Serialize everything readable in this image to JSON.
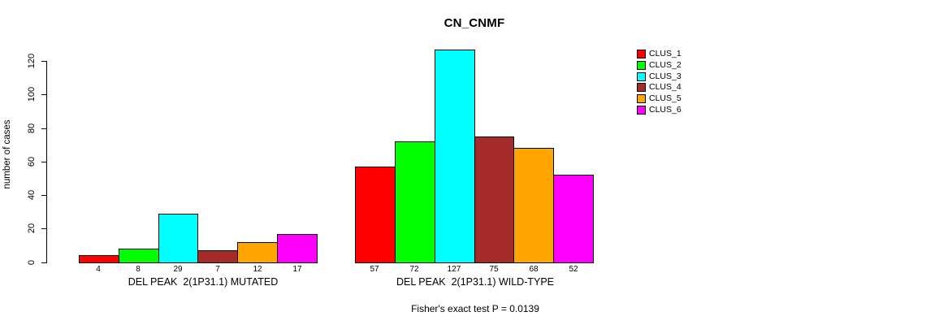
{
  "chart_data": {
    "type": "bar",
    "title": "CN_CNMF",
    "ylabel": "number of cases",
    "ylim": [
      0,
      130
    ],
    "yticks": [
      0,
      20,
      40,
      60,
      80,
      100,
      120
    ],
    "grid": false,
    "legend_position": "right",
    "categories": [
      "CLUS_1",
      "CLUS_2",
      "CLUS_3",
      "CLUS_4",
      "CLUS_5",
      "CLUS_6"
    ],
    "colors": [
      "#ff0000",
      "#00ff00",
      "#00ffff",
      "#a52a2a",
      "#ffa500",
      "#ff00ff"
    ],
    "groups": [
      {
        "label": "DEL PEAK  2(1P31.1) MUTATED",
        "values": [
          4,
          8,
          29,
          7,
          12,
          17
        ]
      },
      {
        "label": "DEL PEAK  2(1P31.1) WILD-TYPE",
        "values": [
          57,
          72,
          127,
          75,
          68,
          52
        ]
      }
    ],
    "annotation": "Fisher's exact test P = 0.0139"
  }
}
